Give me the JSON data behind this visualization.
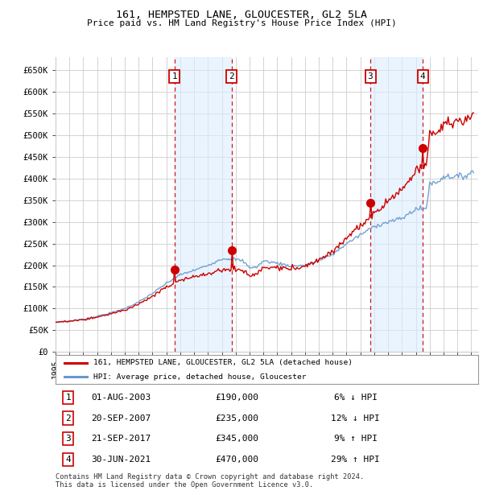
{
  "title1": "161, HEMPSTED LANE, GLOUCESTER, GL2 5LA",
  "title2": "Price paid vs. HM Land Registry's House Price Index (HPI)",
  "ylabel_ticks": [
    "£0",
    "£50K",
    "£100K",
    "£150K",
    "£200K",
    "£250K",
    "£300K",
    "£350K",
    "£400K",
    "£450K",
    "£500K",
    "£550K",
    "£600K",
    "£650K"
  ],
  "ytick_values": [
    0,
    50000,
    100000,
    150000,
    200000,
    250000,
    300000,
    350000,
    400000,
    450000,
    500000,
    550000,
    600000,
    650000
  ],
  "ylim": [
    0,
    680000
  ],
  "xlim_start": 1995.0,
  "xlim_end": 2025.5,
  "sale_dates": [
    2003.58,
    2007.72,
    2017.72,
    2021.5
  ],
  "sale_prices": [
    190000,
    235000,
    345000,
    470000
  ],
  "sale_labels": [
    "1",
    "2",
    "3",
    "4"
  ],
  "legend1_label": "161, HEMPSTED LANE, GLOUCESTER, GL2 5LA (detached house)",
  "legend2_label": "HPI: Average price, detached house, Gloucester",
  "table_data": [
    [
      "1",
      "01-AUG-2003",
      "£190,000",
      "6% ↓ HPI"
    ],
    [
      "2",
      "20-SEP-2007",
      "£235,000",
      "12% ↓ HPI"
    ],
    [
      "3",
      "21-SEP-2017",
      "£345,000",
      "9% ↑ HPI"
    ],
    [
      "4",
      "30-JUN-2021",
      "£470,000",
      "29% ↑ HPI"
    ]
  ],
  "footnote": "Contains HM Land Registry data © Crown copyright and database right 2024.\nThis data is licensed under the Open Government Licence v3.0.",
  "hpi_color": "#6699cc",
  "price_color": "#cc0000",
  "vline_color": "#cc0000",
  "shade_color": "#ddeeff",
  "grid_color": "#cccccc",
  "bg_color": "#ffffff",
  "hpi_anchors": {
    "1995.0": 68000,
    "1996.0": 71000,
    "1997.0": 75000,
    "1998.0": 82000,
    "1999.0": 90000,
    "2000.0": 100000,
    "2001.0": 115000,
    "2002.0": 135000,
    "2003.0": 158000,
    "2004.0": 178000,
    "2005.0": 188000,
    "2006.0": 200000,
    "2007.0": 215000,
    "2007.75": 228000,
    "2008.5": 210000,
    "2009.0": 195000,
    "2009.5": 200000,
    "2010.0": 210000,
    "2011.0": 205000,
    "2012.0": 198000,
    "2013.0": 200000,
    "2014.0": 210000,
    "2015.0": 225000,
    "2016.0": 250000,
    "2017.0": 270000,
    "2018.0": 290000,
    "2019.0": 300000,
    "2020.0": 308000,
    "2021.0": 330000,
    "2021.75": 370000,
    "2022.0": 390000,
    "2022.5": 410000,
    "2023.0": 405000,
    "2023.5": 400000,
    "2024.0": 405000,
    "2024.5": 410000,
    "2025.0": 415000
  },
  "pp_scale_anchors": {
    "1995.0": 1.0,
    "2003.58": 0.94,
    "2007.72": 0.88,
    "2017.72": 1.09,
    "2021.5": 1.29,
    "2025.0": 1.32
  }
}
